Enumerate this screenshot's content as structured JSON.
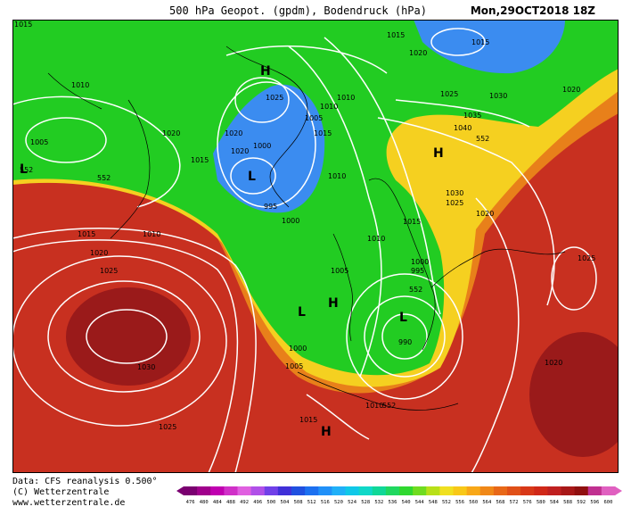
{
  "header": {
    "title": "500 hPa Geopot. (gpdm), Bodendruck (hPa)",
    "datetime": "Mon,29OCT2018 18Z"
  },
  "footer": {
    "line1": "Data: CFS reanalysis 0.500°",
    "line2": "(C) Wetterzentrale",
    "line3": "www.wetterzentrale.de"
  },
  "colors": {
    "blue": "#3b8cf0",
    "green": "#22cc22",
    "yellow": "#f5d020",
    "orange": "#e8801a",
    "red": "#c83020",
    "darkred": "#9a1a1a"
  },
  "legend": {
    "values": [
      "476",
      "480",
      "484",
      "488",
      "492",
      "496",
      "500",
      "504",
      "508",
      "512",
      "516",
      "520",
      "524",
      "528",
      "532",
      "536",
      "540",
      "544",
      "548",
      "552",
      "556",
      "560",
      "564",
      "568",
      "572",
      "576",
      "580",
      "584",
      "588",
      "592",
      "596",
      "600"
    ],
    "colors": [
      "#7a0070",
      "#a0008c",
      "#c000b0",
      "#d030c8",
      "#e060e0",
      "#b050e8",
      "#7040e8",
      "#4030d8",
      "#2050e0",
      "#1c70f0",
      "#2090f8",
      "#20b0f8",
      "#10c8e8",
      "#10d8c8",
      "#10d898",
      "#20d860",
      "#30d830",
      "#70dc20",
      "#b8e018",
      "#f0e020",
      "#f8c818",
      "#f8a818",
      "#f08818",
      "#e86818",
      "#e05018",
      "#d83818",
      "#d02818",
      "#c02020",
      "#a81818",
      "#901010",
      "#c03090",
      "#e060c0"
    ]
  },
  "map_labels": {
    "isobars": [
      {
        "text": "1015"
      },
      {
        "text": "1010"
      },
      {
        "text": "1005"
      },
      {
        "text": "1020"
      },
      {
        "text": "1015"
      },
      {
        "text": "1025"
      },
      {
        "text": "1020"
      },
      {
        "text": "1000"
      },
      {
        "text": "995"
      },
      {
        "text": "1000"
      },
      {
        "text": "1005"
      },
      {
        "text": "1010"
      },
      {
        "text": "1015"
      },
      {
        "text": "1020"
      },
      {
        "text": "1015"
      },
      {
        "text": "1010"
      },
      {
        "text": "1025"
      },
      {
        "text": "1030"
      },
      {
        "text": "1035"
      },
      {
        "text": "1040"
      },
      {
        "text": "1020"
      },
      {
        "text": "1030"
      },
      {
        "text": "1025"
      },
      {
        "text": "1020"
      },
      {
        "text": "1015"
      },
      {
        "text": "1010"
      },
      {
        "text": "1000"
      },
      {
        "text": "995"
      },
      {
        "text": "990"
      },
      {
        "text": "1005"
      },
      {
        "text": "1000"
      },
      {
        "text": "1005"
      },
      {
        "text": "1010"
      },
      {
        "text": "1015"
      },
      {
        "text": "1015"
      },
      {
        "text": "1010"
      },
      {
        "text": "1020"
      },
      {
        "text": "1025"
      },
      {
        "text": "1030"
      },
      {
        "text": "1025"
      },
      {
        "text": "1025"
      },
      {
        "text": "1020"
      },
      {
        "text": "1010"
      },
      {
        "text": "1020"
      },
      {
        "text": "1015"
      }
    ],
    "geopotential": [
      {
        "text": "552"
      },
      {
        "text": "552"
      },
      {
        "text": "552"
      },
      {
        "text": "552"
      },
      {
        "text": "552"
      }
    ],
    "pressure_centres": [
      {
        "text": "H"
      },
      {
        "text": "L"
      },
      {
        "text": "H"
      },
      {
        "text": "L"
      },
      {
        "text": "L"
      },
      {
        "text": "H"
      },
      {
        "text": "L"
      },
      {
        "text": "H"
      }
    ]
  }
}
